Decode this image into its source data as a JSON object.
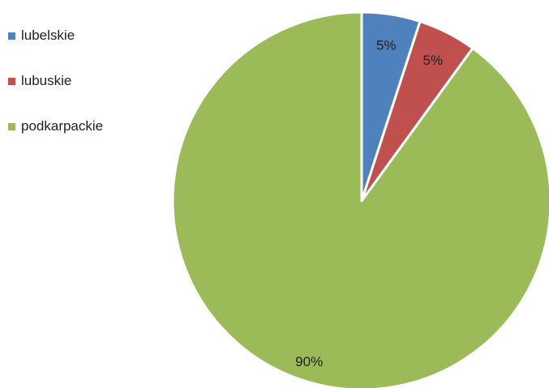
{
  "chart_data": {
    "type": "pie",
    "title": "",
    "legend_position": "top-left",
    "series": [
      {
        "name": "lubelskie",
        "value": 5,
        "label": "5%",
        "color": "#4F81BD"
      },
      {
        "name": "lubuskie",
        "value": 5,
        "label": "5%",
        "color": "#C0504D"
      },
      {
        "name": "podkarpackie",
        "value": 90,
        "label": "90%",
        "color": "#9BBB59"
      }
    ]
  }
}
